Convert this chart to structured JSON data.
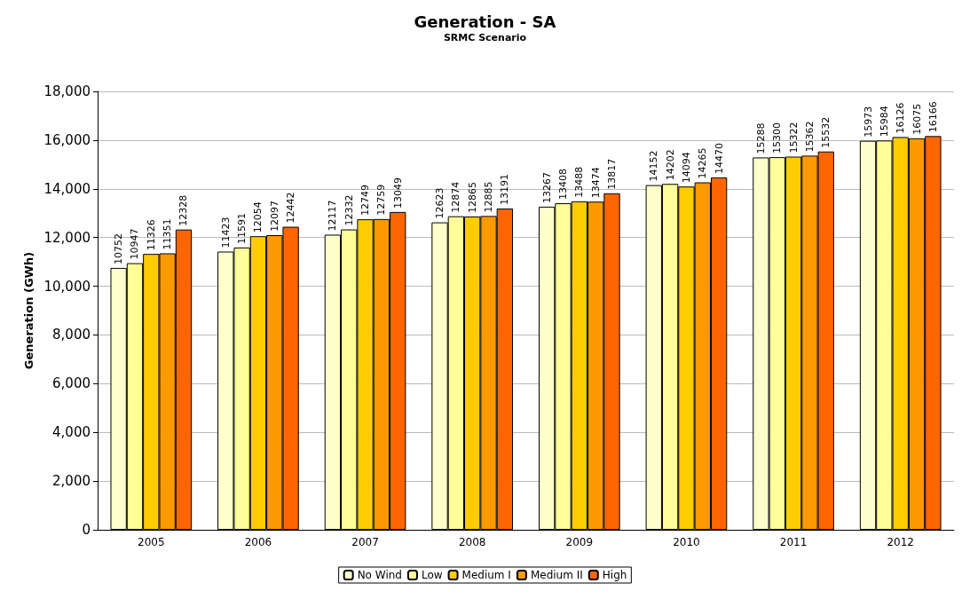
{
  "chart_data": {
    "type": "bar",
    "title": "Generation - SA",
    "subtitle": "SRMC Scenario",
    "ylabel": "Generation (GWh)",
    "categories": [
      "2005",
      "2006",
      "2007",
      "2008",
      "2009",
      "2010",
      "2011",
      "2012"
    ],
    "series": [
      {
        "name": "No Wind",
        "color": "#ffffcc",
        "values": [
          10752,
          11423,
          12117,
          12623,
          13267,
          14152,
          15288,
          15973
        ]
      },
      {
        "name": "Low",
        "color": "#ffff99",
        "values": [
          10947,
          11591,
          12332,
          12874,
          13408,
          14202,
          15300,
          15984
        ]
      },
      {
        "name": "Medium I",
        "color": "#ffcc00",
        "values": [
          11326,
          12054,
          12749,
          12865,
          13488,
          14094,
          15322,
          16126
        ]
      },
      {
        "name": "Medium II",
        "color": "#ff9900",
        "values": [
          11351,
          12097,
          12759,
          12885,
          13474,
          14265,
          15362,
          16075
        ]
      },
      {
        "name": "High",
        "color": "#ff6600",
        "values": [
          12328,
          12442,
          13049,
          13191,
          13817,
          14470,
          15532,
          16166
        ]
      }
    ],
    "ylim": [
      0,
      18000
    ],
    "yticks": [
      0,
      {
        "value": 2000,
        "label": "2,000"
      },
      {
        "value": 4000,
        "label": "4,000"
      },
      {
        "value": 6000,
        "label": "6,000"
      },
      {
        "value": 8000,
        "label": "8,000"
      },
      {
        "value": 10000,
        "label": "10,000"
      },
      {
        "value": 12000,
        "label": "12,000"
      },
      {
        "value": 14000,
        "label": "14,000"
      },
      {
        "value": 16000,
        "label": "16,000"
      },
      {
        "value": 18000,
        "label": "18,000"
      }
    ],
    "grid": "y",
    "legend": "bottom",
    "data_labels": true
  }
}
